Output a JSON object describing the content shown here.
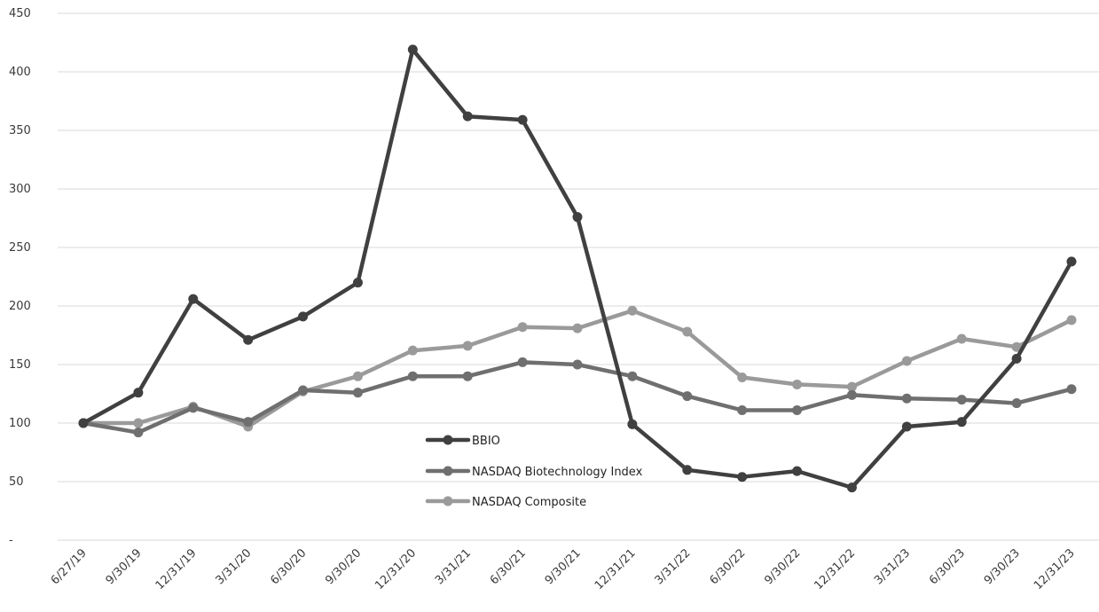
{
  "chart_data": {
    "type": "line",
    "title": "",
    "xlabel": "",
    "ylabel": "",
    "x": [
      "6/27/19",
      "9/30/19",
      "12/31/19",
      "3/31/20",
      "6/30/20",
      "9/30/20",
      "12/31/20",
      "3/31/21",
      "6/30/21",
      "9/30/21",
      "12/31/21",
      "3/31/22",
      "6/30/22",
      "9/30/22",
      "12/31/22",
      "3/31/23",
      "6/30/23",
      "9/30/23",
      "12/31/23"
    ],
    "ylim": [
      0,
      450
    ],
    "yticks": [
      0,
      50,
      100,
      150,
      200,
      250,
      300,
      350,
      400,
      450
    ],
    "ytick_labels": [
      "-",
      "50",
      "100",
      "150",
      "200",
      "250",
      "300",
      "350",
      "400",
      "450"
    ],
    "grid": true,
    "legend_position": "center",
    "series": [
      {
        "name": "BBIO",
        "color": "#404040",
        "values": [
          100,
          126,
          206,
          171,
          191,
          220,
          419,
          362,
          359,
          276,
          99,
          60,
          54,
          59,
          45,
          97,
          101,
          155,
          238
        ]
      },
      {
        "name": "NASDAQ Biotechnology Index",
        "color": "#6f6f6f",
        "values": [
          100,
          92,
          113,
          101,
          128,
          126,
          140,
          140,
          152,
          150,
          140,
          123,
          111,
          111,
          124,
          121,
          120,
          117,
          129
        ]
      },
      {
        "name": "NASDAQ Composite",
        "color": "#9a9a9a",
        "values": [
          100,
          100,
          114,
          97,
          127,
          140,
          162,
          166,
          182,
          181,
          196,
          178,
          139,
          133,
          131,
          153,
          172,
          165,
          188
        ]
      }
    ]
  }
}
